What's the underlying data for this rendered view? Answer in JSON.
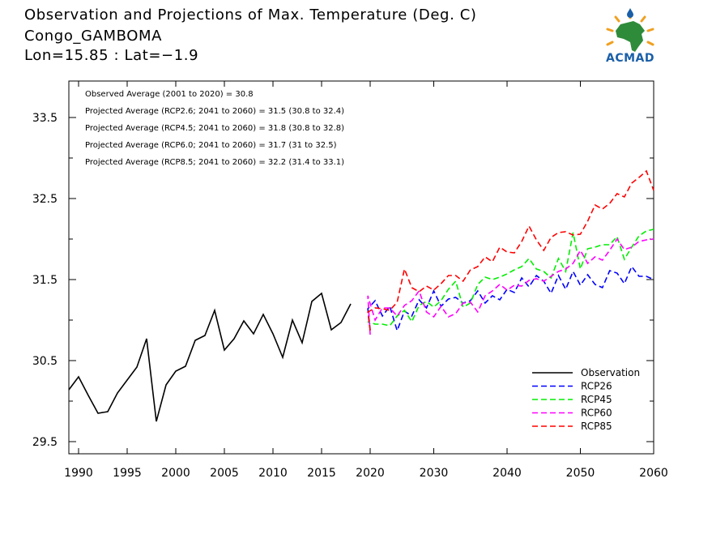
{
  "header": {
    "title": "Observation and Projections of Max. Temperature (Deg. C)",
    "station": "Congo_GAMBOMA",
    "coords": "Lon=15.85 : Lat=−1.9"
  },
  "logo": {
    "text": "ACMAD",
    "icon": "africa-map-icon"
  },
  "annotations": [
    "Observed Average (2001 to 2020) = 30.8",
    "Projected Average (RCP2.6; 2041 to 2060) = 31.5 (30.8 to 32.4)",
    "Projected Average (RCP4.5; 2041 to 2060) = 31.8 (30.8 to 32.8)",
    "Projected Average (RCP6.0; 2041 to 2060) = 31.7 (31 to 32.5)",
    "Projected Average (RCP8.5; 2041 to 2060) = 32.2 (31.4 to 33.1)"
  ],
  "chart_data": {
    "type": "line",
    "title": "Observation and Projections of Max. Temperature (Deg. C)",
    "xlabel": "",
    "ylabel": "",
    "ylim": [
      29.35,
      33.95
    ],
    "xticks_left": [
      1990,
      1995,
      2000,
      2005,
      2010,
      2015,
      2020
    ],
    "xticks_right": [
      2030,
      2040,
      2050,
      2060
    ],
    "yticks": [
      "29.5",
      "30.5",
      "31.5",
      "32.5",
      "33.5"
    ],
    "legend_position": "bottom-right",
    "series": [
      {
        "name": "Observation",
        "color": "#000000",
        "dashed": false,
        "x": [
          1989,
          1990,
          1991,
          1992,
          1993,
          1994,
          1995,
          1996,
          1997,
          1998,
          1999,
          2000,
          2001,
          2002,
          2003,
          2004,
          2005,
          2006,
          2007,
          2008,
          2009,
          2010,
          2011,
          2012,
          2013,
          2014,
          2015,
          2016,
          2017,
          2018,
          2019
        ],
        "values": [
          30.14,
          30.3,
          30.07,
          29.85,
          29.87,
          30.1,
          30.26,
          30.42,
          30.77,
          29.75,
          30.2,
          30.37,
          30.43,
          30.75,
          30.81,
          31.12,
          30.63,
          30.77,
          30.99,
          30.83,
          31.07,
          30.83,
          30.54,
          31.0,
          30.72,
          31.23,
          31.33,
          30.88,
          30.97,
          31.2,
          null
        ]
      },
      {
        "name": "RCP26",
        "color": "#0000ff",
        "dashed": true,
        "x": [
          2020,
          2021,
          2022,
          2023,
          2024,
          2025,
          2026,
          2027,
          2028,
          2029,
          2030,
          2031,
          2032,
          2033,
          2034,
          2035,
          2036,
          2037,
          2038,
          2039,
          2040,
          2041,
          2042,
          2043,
          2044,
          2045,
          2046,
          2047,
          2048,
          2049,
          2050,
          2051,
          2052,
          2053,
          2054,
          2055,
          2056,
          2057,
          2058,
          2059,
          2060
        ],
        "values": [
          30.88,
          31.14,
          31.24,
          31.05,
          31.17,
          30.87,
          31.11,
          31.05,
          31.25,
          31.15,
          31.36,
          31.17,
          31.26,
          31.28,
          31.21,
          31.24,
          31.36,
          31.21,
          31.3,
          31.25,
          31.38,
          31.34,
          31.52,
          31.41,
          31.55,
          31.48,
          31.33,
          31.55,
          31.38,
          31.6,
          31.43,
          31.56,
          31.44,
          31.4,
          31.61,
          31.58,
          31.45,
          31.66,
          31.54,
          31.54,
          31.5
        ]
      },
      {
        "name": "RCP45",
        "color": "#00ee00",
        "dashed": true,
        "x": [
          2020,
          2021,
          2022,
          2023,
          2024,
          2025,
          2026,
          2027,
          2028,
          2029,
          2030,
          2031,
          2032,
          2033,
          2034,
          2035,
          2036,
          2037,
          2038,
          2039,
          2040,
          2041,
          2042,
          2043,
          2044,
          2045,
          2046,
          2047,
          2048,
          2049,
          2050,
          2051,
          2052,
          2053,
          2054,
          2055,
          2056,
          2057,
          2058,
          2059,
          2060
        ],
        "values": [
          30.95,
          30.98,
          30.95,
          30.95,
          30.93,
          31.05,
          31.12,
          30.98,
          31.18,
          31.23,
          31.16,
          31.24,
          31.38,
          31.48,
          31.16,
          31.21,
          31.44,
          31.53,
          31.5,
          31.53,
          31.57,
          31.62,
          31.66,
          31.76,
          31.63,
          31.6,
          31.52,
          31.76,
          31.6,
          32.08,
          31.63,
          31.88,
          31.9,
          31.93,
          31.93,
          32.03,
          31.75,
          31.9,
          32.04,
          32.1,
          32.12
        ]
      },
      {
        "name": "RCP60",
        "color": "#ff00ff",
        "dashed": true,
        "x": [
          2020,
          2021,
          2022,
          2023,
          2024,
          2025,
          2026,
          2027,
          2028,
          2029,
          2030,
          2031,
          2032,
          2033,
          2034,
          2035,
          2036,
          2037,
          2038,
          2039,
          2040,
          2041,
          2042,
          2043,
          2044,
          2045,
          2046,
          2047,
          2048,
          2049,
          2050,
          2051,
          2052,
          2053,
          2054,
          2055,
          2056,
          2057,
          2058,
          2059,
          2060
        ],
        "values": [
          30.82,
          31.3,
          31.0,
          31.15,
          31.15,
          31.05,
          31.18,
          31.24,
          31.36,
          31.1,
          31.04,
          31.17,
          31.04,
          31.08,
          31.21,
          31.22,
          31.1,
          31.3,
          31.36,
          31.44,
          31.37,
          31.43,
          31.42,
          31.49,
          31.51,
          31.48,
          31.54,
          31.6,
          31.63,
          31.7,
          31.86,
          31.7,
          31.78,
          31.74,
          31.86,
          32.0,
          31.87,
          31.9,
          31.97,
          31.99,
          32.0
        ]
      },
      {
        "name": "RCP85",
        "color": "#ff0000",
        "dashed": true,
        "x": [
          2020,
          2021,
          2022,
          2023,
          2024,
          2025,
          2026,
          2027,
          2028,
          2029,
          2030,
          2031,
          2032,
          2033,
          2034,
          2035,
          2036,
          2037,
          2038,
          2039,
          2040,
          2041,
          2042,
          2043,
          2044,
          2045,
          2046,
          2047,
          2048,
          2049,
          2050,
          2051,
          2052,
          2053,
          2054,
          2055,
          2056,
          2057,
          2058,
          2059,
          2060
        ],
        "values": [
          30.87,
          31.1,
          31.15,
          31.14,
          31.12,
          31.22,
          31.63,
          31.4,
          31.35,
          31.42,
          31.37,
          31.45,
          31.55,
          31.55,
          31.48,
          31.62,
          31.66,
          31.78,
          31.72,
          31.9,
          31.84,
          31.83,
          31.97,
          32.16,
          31.99,
          31.86,
          32.02,
          32.08,
          32.09,
          32.05,
          32.06,
          32.22,
          32.42,
          32.37,
          32.44,
          32.56,
          32.52,
          32.69,
          32.76,
          32.84,
          32.6
        ]
      }
    ]
  }
}
